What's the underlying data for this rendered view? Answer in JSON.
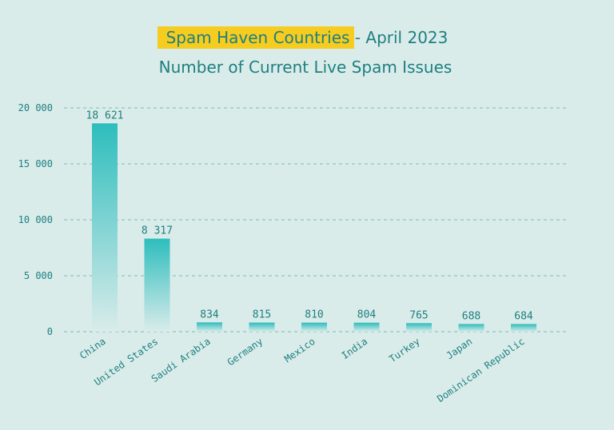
{
  "colors": {
    "background": "#d9ecea",
    "text": "#1f7f80",
    "highlight": "#f5cc1f",
    "bar_top": "#2dbdbd",
    "bar_bottom": "#d9ecea",
    "gridline": "#7fb9b5"
  },
  "chart_data": {
    "type": "bar",
    "title_highlight": "Spam Haven Countries",
    "title_rest": " - April 2023",
    "subtitle": "Number of Current Live Spam Issues",
    "categories": [
      "China",
      "United States",
      "Saudi Arabia",
      "Germany",
      "Mexico",
      "India",
      "Turkey",
      "Japan",
      "Dominican Republic"
    ],
    "values": [
      18621,
      8317,
      834,
      815,
      810,
      804,
      765,
      688,
      684
    ],
    "value_labels": [
      "18 621",
      "8 317",
      "834",
      "815",
      "810",
      "804",
      "765",
      "688",
      "684"
    ],
    "ylim": [
      0,
      20000
    ],
    "yticks": [
      0,
      5000,
      10000,
      15000,
      20000
    ],
    "ytick_labels": [
      "0",
      "5 000",
      "10 000",
      "15 000",
      "20 000"
    ],
    "xlabel": "",
    "ylabel": "",
    "grid": true
  }
}
